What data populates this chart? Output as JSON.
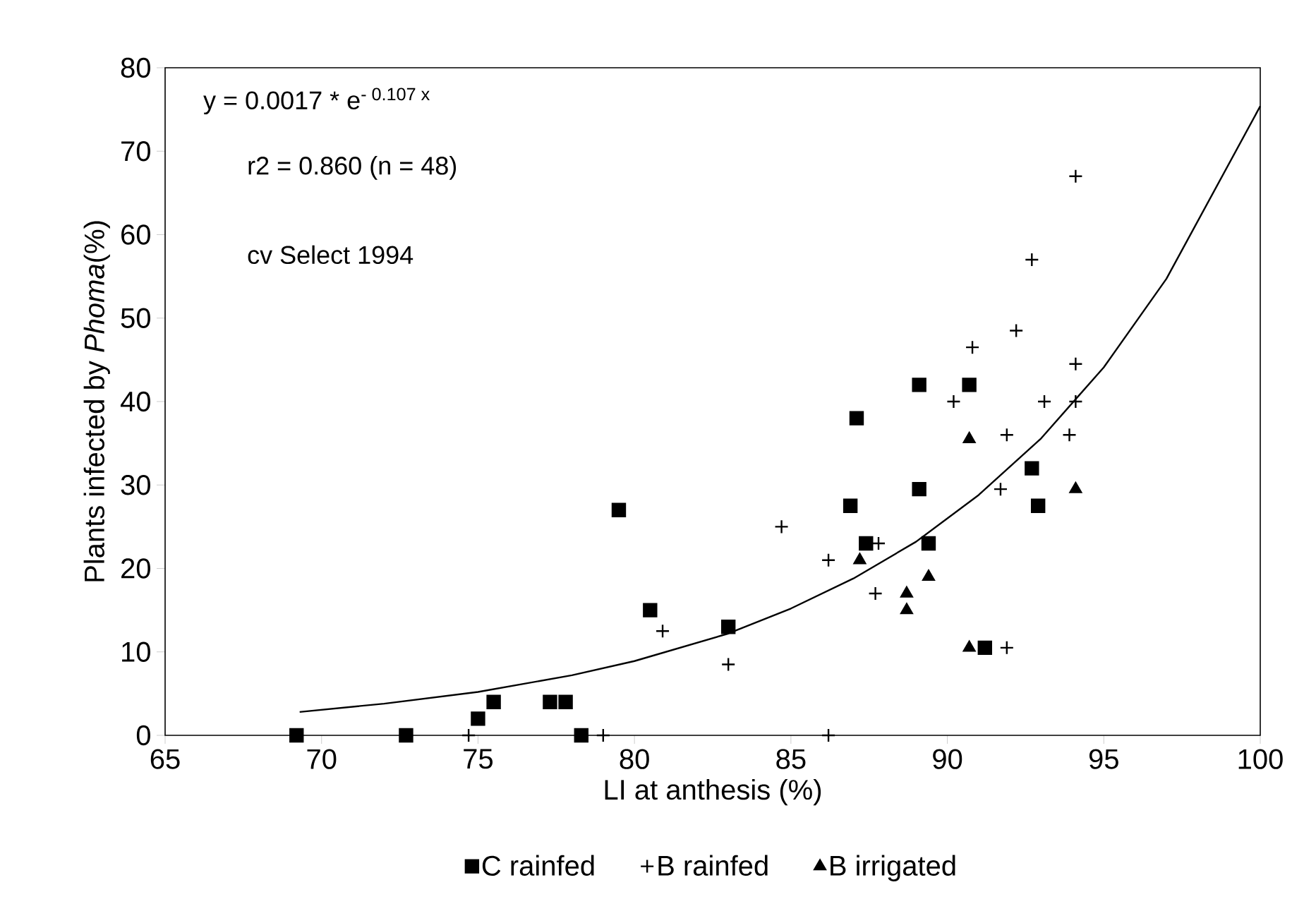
{
  "chart_data": {
    "type": "scatter",
    "xlabel": "LI at anthesis (%)",
    "ylabel": "Plants infected by *Phoma*(%)",
    "xlim": [
      65,
      100
    ],
    "xticks": [
      65,
      70,
      75,
      80,
      85,
      90,
      95,
      100
    ],
    "ylim": [
      0,
      80
    ],
    "yticks": [
      0,
      10,
      20,
      30,
      40,
      50,
      60,
      70,
      80
    ],
    "legend": "bottom",
    "grid": false,
    "annotations": [
      "y = 0.0017 * e$^{- 0.107 x}$",
      "r2 = 0.860  (n = 48)",
      "cv Select 1994"
    ],
    "series": [
      {
        "name": "C rainfed",
        "color": "#000000",
        "marker": "square",
        "x": [
          69.2,
          72.7,
          75,
          75.5,
          77.3,
          77.8,
          78.3,
          79.5,
          80.5,
          83,
          89.1,
          90.7,
          87.1,
          86.9,
          89.1,
          87.4,
          89.4,
          92.7,
          92.9,
          91.2
        ],
        "values": [
          0,
          0,
          2,
          4,
          4,
          4,
          0,
          27,
          15,
          13,
          42,
          42,
          38,
          27.5,
          29.5,
          23,
          23,
          32,
          27.5,
          10.5
        ]
      },
      {
        "name": "B rainfed",
        "color": "#000000",
        "marker": "cross",
        "x": [
          74.7,
          79,
          80.9,
          83,
          84.7,
          86.2,
          87.7,
          87.8,
          86.2,
          90.2,
          91.9,
          91.7,
          93.1,
          94.1,
          93.9,
          94.1,
          91.9,
          94.1,
          92.7,
          92.2,
          90.8
        ],
        "values": [
          0,
          0,
          12.5,
          8.5,
          25,
          21,
          17,
          23,
          0,
          40,
          36,
          29.5,
          40,
          40,
          36,
          44.5,
          10.5,
          67,
          57,
          48.5,
          46.5
        ]
      },
      {
        "name": "B irrigated",
        "color": "#000000",
        "marker": "triangle",
        "x": [
          90.7,
          94.1,
          87.2,
          89.4,
          88.7,
          88.7,
          90.7
        ],
        "values": [
          35.5,
          29.5,
          21,
          19,
          17,
          15,
          10.5
        ]
      },
      {
        "type": "line",
        "color": "#000000",
        "marker": "none",
        "line_style": "solid",
        "x": [
          69.3,
          72,
          75,
          78,
          80,
          83,
          85,
          87,
          89,
          91,
          93,
          95,
          97,
          100
        ],
        "values": [
          2.8,
          3.8,
          5.2,
          7.2,
          8.9,
          12.2,
          15.2,
          18.8,
          23.2,
          28.8,
          35.6,
          44.1,
          54.7,
          75.4
        ]
      }
    ]
  }
}
